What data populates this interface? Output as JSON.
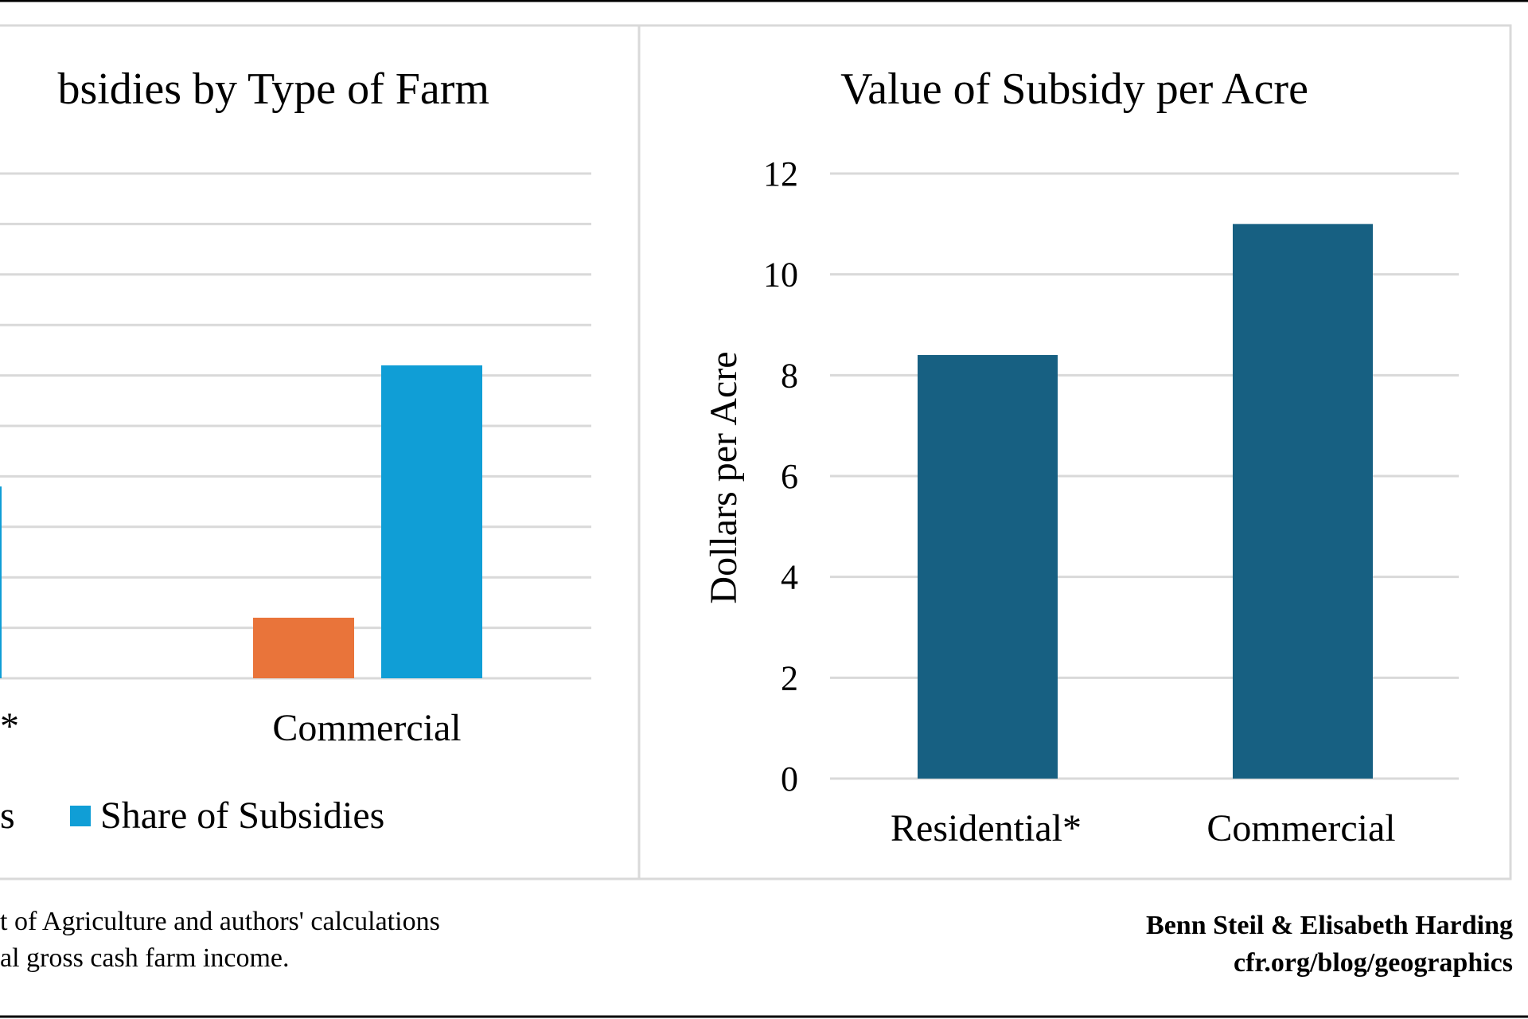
{
  "colors": {
    "farms_orange": "#E9743A",
    "subsidies_blue": "#109ED6",
    "per_acre_teal": "#176082",
    "grid": "#D9D9D9"
  },
  "chart_data": [
    {
      "type": "bar",
      "title": "bsidies by Type of Farm",
      "categories": [
        "*",
        "Commercial"
      ],
      "series": [
        {
          "name": "s",
          "color": "#E9743A",
          "values": [
            null,
            12
          ]
        },
        {
          "name": "Share of Subsidies",
          "color": "#109ED6",
          "values": [
            38,
            62
          ]
        }
      ],
      "ylim": [
        0,
        100
      ],
      "ystep": 10,
      "grid": true,
      "legend": "bottom",
      "note": "Left chart is cropped; y-axis tick labels not visible"
    },
    {
      "type": "bar",
      "title": "Value of Subsidy per Acre",
      "categories": [
        "Residential*",
        "Commercial"
      ],
      "values": [
        8.4,
        11.0
      ],
      "color": "#176082",
      "xlabel": "",
      "ylabel": "Dollars per Acre",
      "ylim": [
        0,
        12
      ],
      "yticks": [
        "0",
        "2",
        "4",
        "6",
        "8",
        "10",
        "12"
      ],
      "grid": true
    }
  ],
  "footer": {
    "source_line": "t of Agriculture and authors' calculations",
    "note_line": "al gross cash farm income.",
    "authors": "Benn Steil & Elisabeth Harding",
    "url": "cfr.org/blog/geographics"
  }
}
